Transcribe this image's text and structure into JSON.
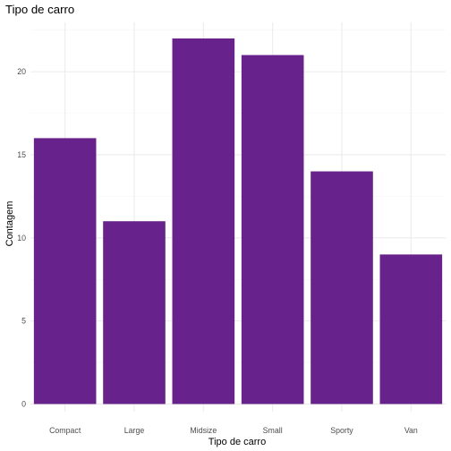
{
  "chart_data": {
    "type": "bar",
    "title": "Tipo de carro",
    "xlabel": "Tipo de carro",
    "ylabel": "Contagem",
    "categories": [
      "Compact",
      "Large",
      "Midsize",
      "Small",
      "Sporty",
      "Van"
    ],
    "values": [
      16,
      11,
      22,
      21,
      14,
      9
    ],
    "ylim": [
      0,
      23.1
    ],
    "yticks": [
      0,
      5,
      10,
      15,
      20
    ],
    "grid": true,
    "bar_color": "#68228b",
    "legend": "none"
  }
}
